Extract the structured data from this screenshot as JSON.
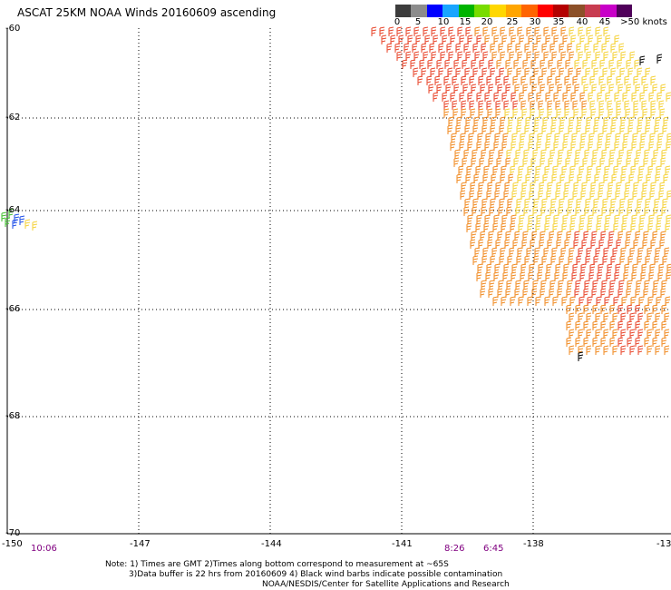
{
  "title": "ASCAT 25KM NOAA Winds 20160609 ascending",
  "colorbar": {
    "colors": [
      "#3c3c3c",
      "#8c8c8c",
      "#0000ff",
      "#19a5ff",
      "#00b400",
      "#78dc00",
      "#ffd700",
      "#ffa500",
      "#ff6400",
      "#ff0000",
      "#b40000",
      "#8c5028",
      "#c83c50",
      "#c800c8",
      "#50005a"
    ],
    "labels": [
      "0",
      "5",
      "10",
      "15",
      "20",
      "25",
      "30",
      "35",
      "40",
      "45",
      ">50 knots"
    ]
  },
  "map": {
    "lat_labels": [
      "-60",
      "-62",
      "-64",
      "-66",
      "-68",
      "-70"
    ],
    "lon_labels": [
      "-150",
      "-147",
      "-144",
      "-141",
      "-138",
      "-13"
    ],
    "times": [
      "10:06",
      "8:26",
      "6:45"
    ]
  },
  "notes": {
    "line1": "Note: 1) Times are GMT 2)Times along bottom correspond to measurement at ~65S",
    "line2": "3)Data buffer is 22 hrs from 20160609 4) Black wind barbs indicate possible contamination",
    "line3": "NOAA/NESDIS/Center for Satellite Applications and Research"
  },
  "barb_colors": {
    "red": "#e8452a",
    "orange": "#f08a20",
    "yellow": "#f5d23a",
    "green": "#3cbf2a",
    "blue": "#1e4ee8",
    "black": "#000000"
  }
}
